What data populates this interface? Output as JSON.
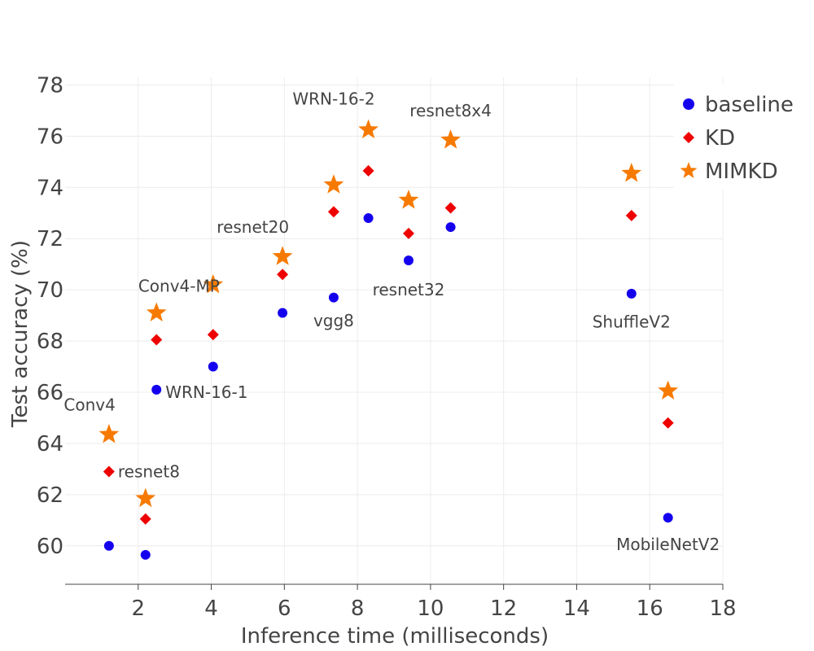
{
  "chart_data": {
    "type": "scatter",
    "title": "",
    "xlabel": "Inference time (milliseconds)",
    "ylabel": "Test accuracy (%)",
    "xlim": [
      0,
      18
    ],
    "ylim": [
      58.5,
      78.3
    ],
    "xticks": [
      2,
      4,
      6,
      8,
      10,
      12,
      14,
      16,
      18
    ],
    "yticks": [
      60,
      62,
      64,
      66,
      68,
      70,
      72,
      74,
      76,
      78
    ],
    "grid": true,
    "legend_position": "top-right",
    "series": [
      {
        "name": "baseline",
        "marker": "circle",
        "color": "#1500ee",
        "points": [
          {
            "model": "Conv4",
            "x": 1.2,
            "y": 60.0
          },
          {
            "model": "resnet8",
            "x": 2.2,
            "y": 59.65
          },
          {
            "model": "WRN-16-1",
            "x": 2.5,
            "y": 66.1
          },
          {
            "model": "Conv4-MP",
            "x": 4.05,
            "y": 67.0
          },
          {
            "model": "resnet20",
            "x": 5.95,
            "y": 69.1
          },
          {
            "model": "vgg8",
            "x": 7.35,
            "y": 69.7
          },
          {
            "model": "WRN-16-2",
            "x": 8.3,
            "y": 72.8
          },
          {
            "model": "resnet32",
            "x": 9.4,
            "y": 71.15
          },
          {
            "model": "resnet8x4",
            "x": 10.55,
            "y": 72.45
          },
          {
            "model": "ShuffleV2",
            "x": 15.5,
            "y": 69.85
          },
          {
            "model": "MobileNetV2",
            "x": 16.5,
            "y": 61.1
          }
        ]
      },
      {
        "name": "KD",
        "marker": "diamond",
        "color": "#ee0000",
        "points": [
          {
            "model": "Conv4",
            "x": 1.2,
            "y": 62.9
          },
          {
            "model": "resnet8",
            "x": 2.2,
            "y": 61.05
          },
          {
            "model": "WRN-16-1",
            "x": 2.5,
            "y": 68.05
          },
          {
            "model": "Conv4-MP",
            "x": 4.05,
            "y": 68.25
          },
          {
            "model": "resnet20",
            "x": 5.95,
            "y": 70.6
          },
          {
            "model": "vgg8",
            "x": 7.35,
            "y": 73.05
          },
          {
            "model": "WRN-16-2",
            "x": 8.3,
            "y": 74.65
          },
          {
            "model": "resnet32",
            "x": 9.4,
            "y": 72.2
          },
          {
            "model": "resnet8x4",
            "x": 10.55,
            "y": 73.2
          },
          {
            "model": "ShuffleV2",
            "x": 15.5,
            "y": 72.9
          },
          {
            "model": "MobileNetV2",
            "x": 16.5,
            "y": 64.8
          }
        ]
      },
      {
        "name": "MIMKD",
        "marker": "star",
        "color": "#f77a00",
        "points": [
          {
            "model": "Conv4",
            "x": 1.2,
            "y": 64.35
          },
          {
            "model": "resnet8",
            "x": 2.2,
            "y": 61.85
          },
          {
            "model": "WRN-16-1",
            "x": 2.5,
            "y": 69.1
          },
          {
            "model": "Conv4-MP",
            "x": 4.05,
            "y": 70.2
          },
          {
            "model": "resnet20",
            "x": 5.95,
            "y": 71.3
          },
          {
            "model": "vgg8",
            "x": 7.35,
            "y": 74.1
          },
          {
            "model": "WRN-16-2",
            "x": 8.3,
            "y": 76.25
          },
          {
            "model": "resnet32",
            "x": 9.4,
            "y": 73.5
          },
          {
            "model": "resnet8x4",
            "x": 10.55,
            "y": 75.85
          },
          {
            "model": "ShuffleV2",
            "x": 15.5,
            "y": 74.55
          },
          {
            "model": "MobileNetV2",
            "x": 16.5,
            "y": 66.05
          }
        ]
      }
    ],
    "annotations": [
      {
        "text": "WRN-16-2",
        "x": 8.3,
        "y": 77.45,
        "anchor": "end"
      },
      {
        "text": "resnet8x4",
        "x": 10.55,
        "y": 77.0,
        "anchor": "middle"
      },
      {
        "text": "resnet20",
        "x": 5.95,
        "y": 72.45,
        "anchor": "end"
      },
      {
        "text": "Conv4-MP",
        "x": 4.05,
        "y": 70.15,
        "anchor": "end"
      },
      {
        "text": "resnet32",
        "x": 9.4,
        "y": 70.0,
        "anchor": "middle"
      },
      {
        "text": "vgg8",
        "x": 7.35,
        "y": 68.8,
        "anchor": "middle"
      },
      {
        "text": "ShuffleV2",
        "x": 15.5,
        "y": 68.75,
        "anchor": "middle"
      },
      {
        "text": "WRN-16-1",
        "x": 2.5,
        "y": 66.0,
        "anchor": "start"
      },
      {
        "text": "Conv4",
        "x": 1.2,
        "y": 65.5,
        "anchor": "end"
      },
      {
        "text": "resnet8",
        "x": 1.2,
        "y": 62.9,
        "anchor": "start"
      },
      {
        "text": "MobileNetV2",
        "x": 16.5,
        "y": 60.05,
        "anchor": "middle"
      }
    ]
  }
}
